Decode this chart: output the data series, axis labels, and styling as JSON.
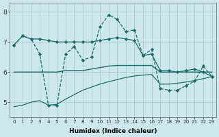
{
  "background_color": "#cce8ec",
  "grid_color": "#aacccc",
  "line_color": "#1a6b6b",
  "xlabel": "Humidex (Indice chaleur)",
  "ylim": [
    4.5,
    8.3
  ],
  "xlim": [
    -0.5,
    23.5
  ],
  "yticks": [
    5,
    6,
    7,
    8
  ],
  "xticks": [
    0,
    1,
    2,
    3,
    4,
    5,
    6,
    7,
    8,
    9,
    10,
    11,
    12,
    13,
    14,
    15,
    16,
    17,
    18,
    19,
    20,
    21,
    22,
    23
  ],
  "series": [
    {
      "y": [
        6.9,
        7.2,
        7.1,
        6.6,
        4.9,
        4.9,
        6.6,
        6.85,
        6.4,
        6.5,
        7.5,
        7.9,
        7.75,
        7.35,
        7.4,
        6.55,
        6.75,
        5.45,
        5.4,
        5.4,
        5.55,
        5.7,
        6.2,
        5.85
      ],
      "marker": "D",
      "markersize": 2.2,
      "linewidth": 0.9,
      "linestyle": "--"
    },
    {
      "y": [
        6.9,
        7.2,
        7.1,
        7.1,
        7.05,
        7.0,
        7.0,
        7.0,
        7.0,
        7.0,
        7.05,
        7.1,
        7.15,
        7.1,
        7.05,
        6.55,
        6.6,
        6.05,
        6.05,
        6.0,
        6.05,
        6.1,
        6.0,
        5.85
      ],
      "marker": "D",
      "markersize": 2.2,
      "linewidth": 0.9,
      "linestyle": "-"
    },
    {
      "y": [
        6.0,
        6.0,
        6.0,
        6.0,
        6.0,
        6.0,
        6.05,
        6.05,
        6.05,
        6.1,
        6.15,
        6.2,
        6.22,
        6.22,
        6.22,
        6.22,
        6.22,
        6.0,
        6.0,
        6.0,
        6.0,
        6.0,
        6.0,
        6.0
      ],
      "marker": null,
      "markersize": 0,
      "linewidth": 1.0,
      "linestyle": "-"
    },
    {
      "y": [
        4.85,
        4.9,
        5.0,
        5.05,
        4.9,
        4.93,
        5.1,
        5.25,
        5.4,
        5.5,
        5.6,
        5.68,
        5.75,
        5.82,
        5.87,
        5.9,
        5.92,
        5.6,
        5.6,
        5.63,
        5.67,
        5.72,
        5.78,
        5.85
      ],
      "marker": null,
      "markersize": 0,
      "linewidth": 0.9,
      "linestyle": "-"
    }
  ]
}
